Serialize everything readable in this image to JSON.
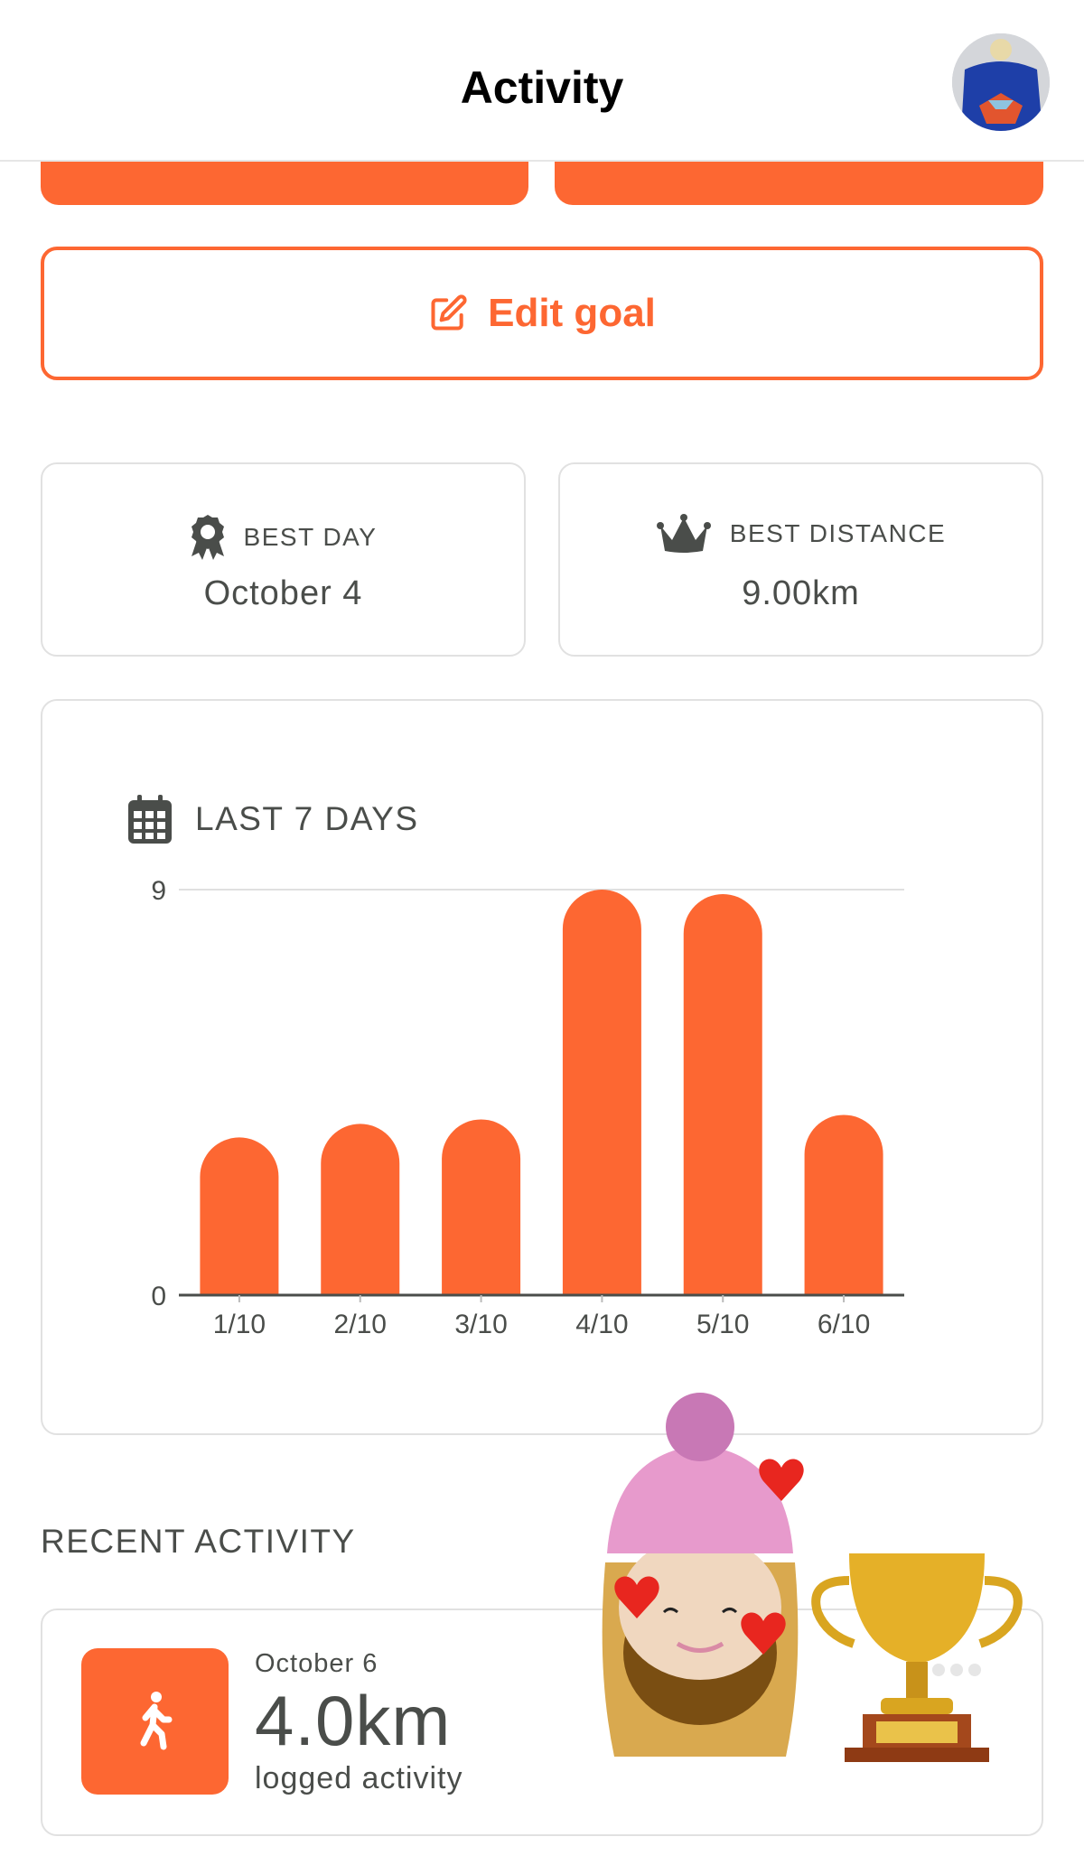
{
  "header": {
    "title": "Activity",
    "avatar_icon": "profile-photo"
  },
  "goal": {
    "edit_label": "Edit goal",
    "edit_icon": "pencil-square-icon"
  },
  "stats": [
    {
      "label": "BEST DAY",
      "value": "October 4",
      "icon": "award-ribbon"
    },
    {
      "label": "BEST DISTANCE",
      "value": "9.00km",
      "icon": "crown"
    }
  ],
  "chart_card": {
    "title": "LAST 7 DAYS",
    "icon": "calendar"
  },
  "chart_data": {
    "type": "bar",
    "title": "LAST 7 DAYS",
    "categories": [
      "1/10",
      "2/10",
      "3/10",
      "4/10",
      "5/10",
      "6/10"
    ],
    "values": [
      3.5,
      3.8,
      3.9,
      9.0,
      8.9,
      4.0
    ],
    "yticks": [
      "0",
      "9"
    ],
    "ylim": [
      0,
      9
    ],
    "grid": true,
    "color": "#FD6732"
  },
  "recent": {
    "heading": "RECENT ACTIVITY",
    "items": [
      {
        "date": "October 6",
        "distance": "4.0km",
        "caption": "logged activity",
        "icon": "walking"
      }
    ]
  },
  "colors": {
    "accent": "#FD6732",
    "text": "#4A4D4A",
    "border": "#E1E1E1"
  },
  "stickers": [
    "memoji-with-hearts",
    "gold-trophy"
  ]
}
